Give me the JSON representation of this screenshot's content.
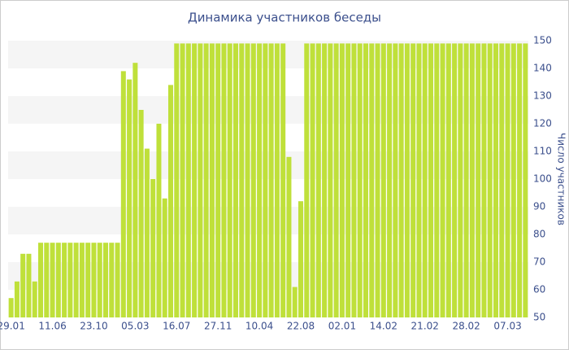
{
  "chart_data": {
    "type": "bar",
    "title": "Динамика участников беседы",
    "y_label": "Число участников",
    "categories": [
      "29.01",
      null,
      null,
      null,
      null,
      null,
      null,
      "11.06",
      null,
      null,
      null,
      null,
      null,
      null,
      "23.10",
      null,
      null,
      null,
      null,
      null,
      null,
      "05.03",
      null,
      null,
      null,
      null,
      null,
      null,
      "16.07",
      null,
      null,
      null,
      null,
      null,
      null,
      "27.11",
      null,
      null,
      null,
      null,
      null,
      null,
      "10.04",
      null,
      null,
      null,
      null,
      null,
      null,
      "22.08",
      null,
      null,
      null,
      null,
      null,
      null,
      "02.01",
      null,
      null,
      null,
      null,
      null,
      null,
      "14.02",
      null,
      null,
      null,
      null,
      null,
      null,
      "21.02",
      null,
      null,
      null,
      null,
      null,
      null,
      "28.02",
      null,
      null,
      null,
      null,
      null,
      null,
      "07.03",
      null,
      null,
      null
    ],
    "values": [
      57,
      63,
      73,
      73,
      63,
      77,
      77,
      77,
      77,
      77,
      77,
      77,
      77,
      77,
      77,
      77,
      77,
      77,
      77,
      139,
      136,
      142,
      125,
      111,
      100,
      120,
      93,
      134,
      149,
      149,
      149,
      149,
      149,
      149,
      149,
      149,
      149,
      149,
      149,
      149,
      149,
      149,
      149,
      149,
      149,
      149,
      149,
      108,
      61,
      92,
      149,
      149,
      149,
      149,
      149,
      149,
      149,
      149,
      149,
      149,
      149,
      149,
      149,
      149,
      149,
      149,
      149,
      149,
      149,
      149,
      149,
      149,
      149,
      149,
      149,
      149,
      149,
      149,
      149,
      149,
      149,
      149,
      149,
      149,
      149,
      149,
      149,
      149
    ],
    "color": "#bfe03a",
    "ylim": [
      50,
      150
    ],
    "yticks": [
      50,
      60,
      70,
      80,
      90,
      100,
      110,
      120,
      130,
      140,
      150
    ],
    "grid": true
  }
}
